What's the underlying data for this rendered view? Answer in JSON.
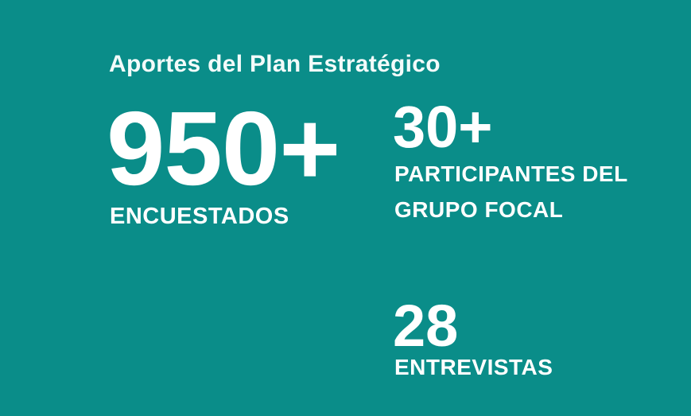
{
  "page": {
    "background_color": "#0a8d89",
    "text_color": "#ffffff"
  },
  "header": {
    "title": "Aportes del Plan Estratégico"
  },
  "stats": [
    {
      "id": "encuestados",
      "value": "950+",
      "label": "ENCUESTADOS"
    },
    {
      "id": "grupo-focal",
      "value": "30+",
      "label": "PARTICIPANTES DEL GRUPO FOCAL",
      "label_lines": [
        "PARTICIPANTES DEL",
        "GRUPO FOCAL"
      ]
    },
    {
      "id": "entrevistas",
      "value": "28",
      "label": "ENTREVISTAS"
    }
  ]
}
